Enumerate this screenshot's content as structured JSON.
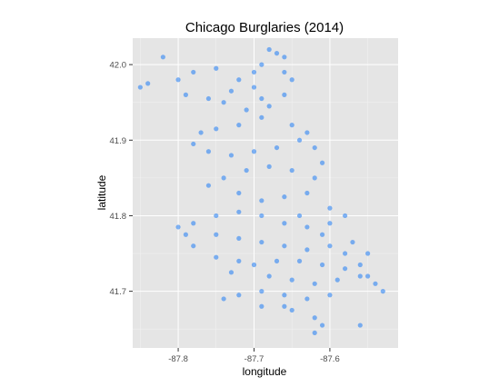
{
  "chart_data": {
    "type": "scatter",
    "title": "Chicago Burglaries (2014)",
    "xlabel": "longitude",
    "ylabel": "latitude",
    "xlim": [
      -87.86,
      -87.51
    ],
    "ylim": [
      41.625,
      42.035
    ],
    "x_ticks": [
      -87.8,
      -87.7,
      -87.6
    ],
    "x_tick_labels": [
      "-87.8",
      "-87.7",
      "-87.6"
    ],
    "y_ticks": [
      41.7,
      41.8,
      41.9,
      42.0
    ],
    "y_tick_labels": [
      "41.7",
      "41.8",
      "41.9",
      "42.0"
    ],
    "grid": true,
    "panel_background": "#e5e5e5",
    "grid_color": "#ffffff",
    "point_color": "#1e7bf5",
    "point_opacity": 0.55,
    "series": [
      {
        "values": [
          [
            -87.68,
            42.02
          ],
          [
            -87.67,
            42.015
          ],
          [
            -87.66,
            42.01
          ],
          [
            -87.69,
            42.0
          ],
          [
            -87.7,
            41.99
          ],
          [
            -87.72,
            41.98
          ],
          [
            -87.75,
            41.995
          ],
          [
            -87.78,
            41.99
          ],
          [
            -87.8,
            41.98
          ],
          [
            -87.82,
            42.01
          ],
          [
            -87.84,
            41.975
          ],
          [
            -87.85,
            41.97
          ],
          [
            -87.79,
            41.96
          ],
          [
            -87.76,
            41.955
          ],
          [
            -87.74,
            41.95
          ],
          [
            -87.71,
            41.94
          ],
          [
            -87.68,
            41.945
          ],
          [
            -87.66,
            41.96
          ],
          [
            -87.65,
            41.98
          ],
          [
            -87.66,
            41.99
          ],
          [
            -87.69,
            41.93
          ],
          [
            -87.72,
            41.92
          ],
          [
            -87.75,
            41.915
          ],
          [
            -87.77,
            41.91
          ],
          [
            -87.78,
            41.895
          ],
          [
            -87.76,
            41.885
          ],
          [
            -87.73,
            41.88
          ],
          [
            -87.7,
            41.885
          ],
          [
            -87.67,
            41.89
          ],
          [
            -87.64,
            41.9
          ],
          [
            -87.63,
            41.91
          ],
          [
            -87.65,
            41.92
          ],
          [
            -87.62,
            41.89
          ],
          [
            -87.61,
            41.87
          ],
          [
            -87.62,
            41.85
          ],
          [
            -87.65,
            41.86
          ],
          [
            -87.68,
            41.865
          ],
          [
            -87.71,
            41.86
          ],
          [
            -87.74,
            41.85
          ],
          [
            -87.76,
            41.84
          ],
          [
            -87.72,
            41.83
          ],
          [
            -87.69,
            41.82
          ],
          [
            -87.66,
            41.825
          ],
          [
            -87.63,
            41.83
          ],
          [
            -87.6,
            41.81
          ],
          [
            -87.58,
            41.8
          ],
          [
            -87.6,
            41.79
          ],
          [
            -87.63,
            41.785
          ],
          [
            -87.66,
            41.79
          ],
          [
            -87.69,
            41.8
          ],
          [
            -87.72,
            41.805
          ],
          [
            -87.75,
            41.8
          ],
          [
            -87.78,
            41.79
          ],
          [
            -87.8,
            41.785
          ],
          [
            -87.79,
            41.775
          ],
          [
            -87.75,
            41.775
          ],
          [
            -87.72,
            41.77
          ],
          [
            -87.69,
            41.765
          ],
          [
            -87.66,
            41.76
          ],
          [
            -87.63,
            41.755
          ],
          [
            -87.6,
            41.76
          ],
          [
            -87.57,
            41.765
          ],
          [
            -87.55,
            41.75
          ],
          [
            -87.56,
            41.735
          ],
          [
            -87.58,
            41.73
          ],
          [
            -87.61,
            41.735
          ],
          [
            -87.64,
            41.74
          ],
          [
            -87.67,
            41.74
          ],
          [
            -87.7,
            41.735
          ],
          [
            -87.72,
            41.74
          ],
          [
            -87.68,
            41.72
          ],
          [
            -87.65,
            41.715
          ],
          [
            -87.62,
            41.71
          ],
          [
            -87.59,
            41.715
          ],
          [
            -87.56,
            41.72
          ],
          [
            -87.54,
            41.71
          ],
          [
            -87.53,
            41.7
          ],
          [
            -87.6,
            41.695
          ],
          [
            -87.63,
            41.69
          ],
          [
            -87.66,
            41.695
          ],
          [
            -87.69,
            41.7
          ],
          [
            -87.72,
            41.695
          ],
          [
            -87.74,
            41.69
          ],
          [
            -87.65,
            41.675
          ],
          [
            -87.62,
            41.665
          ],
          [
            -87.61,
            41.655
          ],
          [
            -87.56,
            41.655
          ],
          [
            -87.62,
            41.645
          ],
          [
            -87.66,
            41.68
          ],
          [
            -87.69,
            41.68
          ],
          [
            -87.73,
            41.725
          ],
          [
            -87.75,
            41.745
          ],
          [
            -87.78,
            41.76
          ],
          [
            -87.64,
            41.8
          ],
          [
            -87.61,
            41.775
          ],
          [
            -87.58,
            41.75
          ],
          [
            -87.55,
            41.72
          ],
          [
            -87.7,
            41.97
          ],
          [
            -87.73,
            41.965
          ],
          [
            -87.69,
            41.955
          ]
        ]
      }
    ]
  }
}
